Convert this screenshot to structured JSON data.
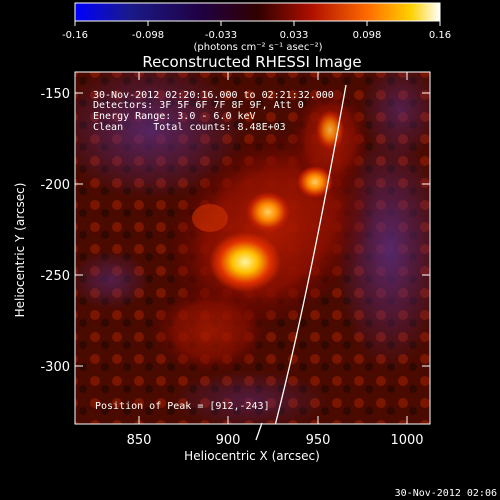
{
  "colorbar": {
    "ticks": [
      "-0.16",
      "-0.098",
      "-0.033",
      "0.033",
      "0.098",
      "0.16"
    ],
    "unit": "(photons cm⁻² s⁻¹ asec⁻²)"
  },
  "title": "Reconstructed RHESSI Image",
  "annotations": {
    "line1": "30-Nov-2012 02:20:16.000 to 02:21:32.000",
    "line2": "Detectors: 3F 5F 6F 7F 8F 9F, Att 0",
    "line3": "Energy Range: 3.0 - 6.0 keV",
    "line4": "Clean     Total counts: 8.48E+03",
    "peak": "Position of Peak = [912,-243]"
  },
  "axes": {
    "xlabel": "Heliocentric X (arcsec)",
    "ylabel": "Heliocentric Y (arcsec)",
    "xticks": [
      "850",
      "900",
      "950",
      "1000"
    ],
    "yticks": [
      "-150",
      "-200",
      "-250",
      "-300"
    ]
  },
  "footer": {
    "timestamp": "30-Nov-2012 02:06"
  },
  "colors": {
    "background": "#000000",
    "text": "#ffffff"
  }
}
